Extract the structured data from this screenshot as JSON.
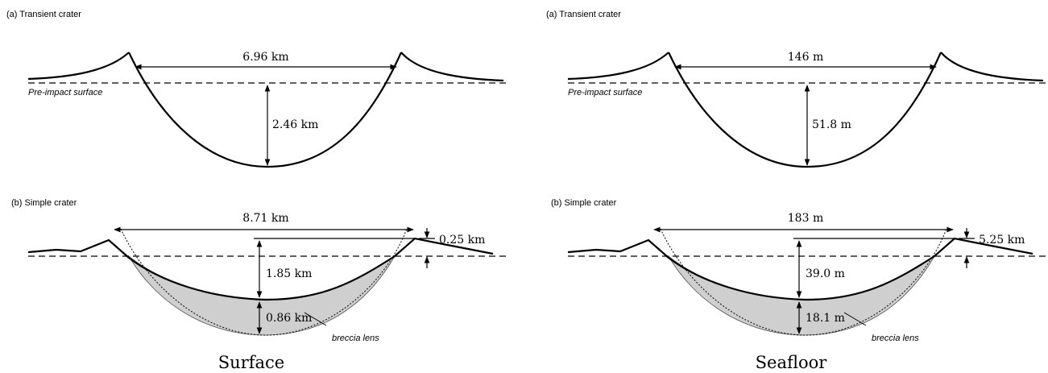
{
  "panels": [
    {
      "caption": "Surface",
      "transient": {
        "label": "(a) Transient crater",
        "width": "6.96 km",
        "depth": "2.46 km",
        "surface_label": "Pre-impact surface"
      },
      "simple": {
        "label": "(b) Simple crater",
        "width": "8.71 km",
        "rim_height": "0.25 km",
        "depth": "1.85 km",
        "breccia_depth": "0.86 km",
        "breccia_label": "breccia lens"
      }
    },
    {
      "caption": "Seafloor",
      "transient": {
        "label": "(a) Transient crater",
        "width": "146 m",
        "depth": "51.8 m",
        "surface_label": "Pre-impact surface"
      },
      "simple": {
        "label": "(b) Simple crater",
        "width": "183 m",
        "rim_height": "5.25 km",
        "depth": "39.0 m",
        "breccia_depth": "18.1 m",
        "breccia_label": "breccia lens"
      }
    }
  ]
}
